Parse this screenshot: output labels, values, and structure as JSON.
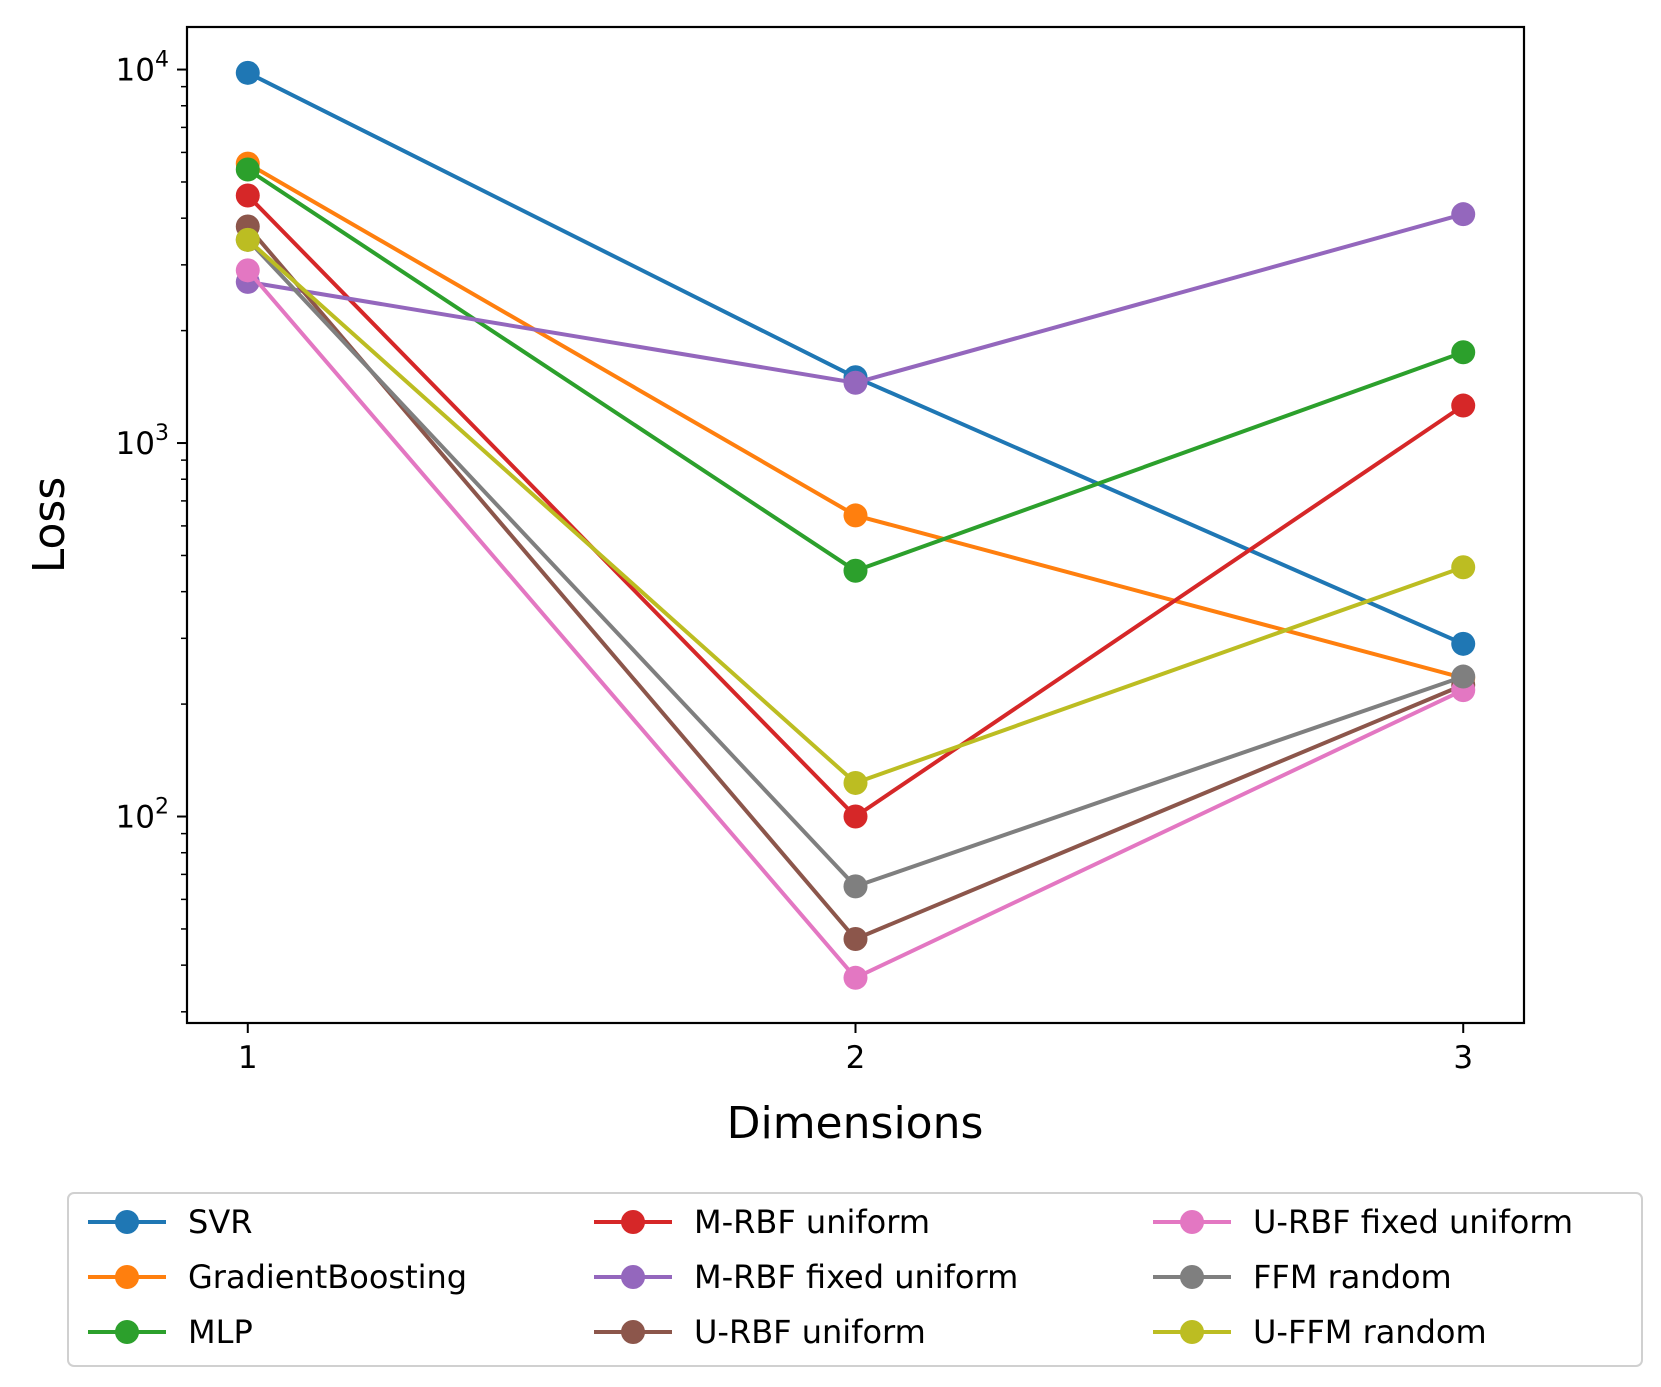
{
  "chart_data": {
    "type": "line",
    "xlabel": "Dimensions",
    "ylabel": "Loss",
    "yscale": "log",
    "xlim": [
      0.9,
      3.1
    ],
    "ylim": [
      28,
      13000
    ],
    "x": [
      1,
      2,
      3
    ],
    "x_ticks": [
      "1",
      "2",
      "3"
    ],
    "y_ticks": [
      {
        "base": "10",
        "exp": "2",
        "value": 100
      },
      {
        "base": "10",
        "exp": "3",
        "value": 1000
      },
      {
        "base": "10",
        "exp": "4",
        "value": 10000
      }
    ],
    "grid": false,
    "legend_position": "bottom",
    "series": [
      {
        "name": "SVR",
        "color": "#1f77b4",
        "values": [
          9800,
          1500,
          290
        ]
      },
      {
        "name": "GradientBoosting",
        "color": "#ff7f0e",
        "values": [
          5600,
          640,
          235
        ]
      },
      {
        "name": "MLP",
        "color": "#2ca02c",
        "values": [
          5400,
          455,
          1750
        ]
      },
      {
        "name": "M-RBF uniform",
        "color": "#d62728",
        "values": [
          4600,
          100,
          1260
        ]
      },
      {
        "name": "M-RBF fixed uniform",
        "color": "#9467bd",
        "values": [
          2700,
          1450,
          4100
        ]
      },
      {
        "name": "U-RBF uniform",
        "color": "#8c564b",
        "values": [
          3800,
          47,
          225
        ]
      },
      {
        "name": "U-RBF fixed uniform",
        "color": "#e377c2",
        "values": [
          2900,
          37,
          218
        ]
      },
      {
        "name": "FFM random",
        "color": "#7f7f7f",
        "values": [
          3500,
          65,
          237
        ]
      },
      {
        "name": "U-FFM random",
        "color": "#bcbd22",
        "values": [
          3500,
          123,
          465
        ]
      }
    ]
  }
}
